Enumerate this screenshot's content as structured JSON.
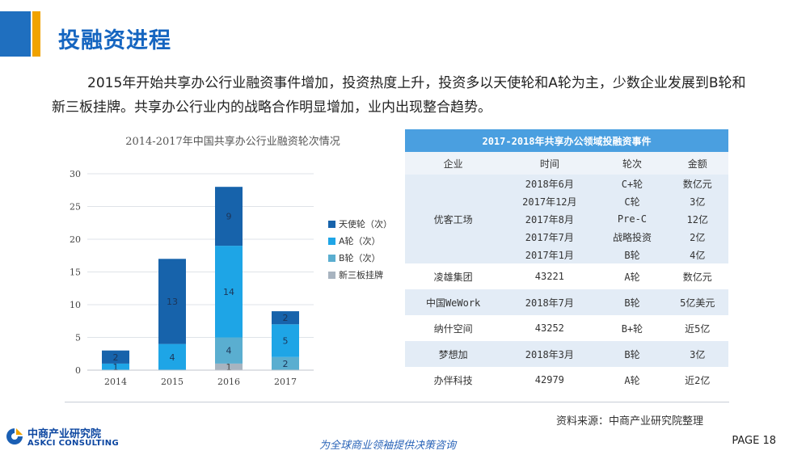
{
  "header": {
    "title": "投融资进程"
  },
  "intro": "2015年开始共享办公行业融资事件增加，投资热度上升，投资多以天使轮和A轮为主，少数企业发展到B轮和新三板挂牌。共享办公行业内的战略合作明显增加，业内出现整合趋势。",
  "chart_data": {
    "type": "bar",
    "stacked": true,
    "title": "2014-2017年中国共享办公行业融资轮次情况",
    "categories": [
      "2014",
      "2015",
      "2016",
      "2017"
    ],
    "ylim": [
      0,
      30
    ],
    "yticks": [
      0,
      5,
      10,
      15,
      20,
      25,
      30
    ],
    "grid": true,
    "legend_position": "right",
    "series": [
      {
        "name": "新三板挂牌",
        "color": "#a8b4c0",
        "values": [
          0,
          0,
          1,
          0
        ],
        "labels": [
          "",
          "",
          "1",
          ""
        ]
      },
      {
        "name": "B轮（次）",
        "color": "#5aaed0",
        "values": [
          0,
          0,
          4,
          2
        ],
        "labels": [
          "",
          "",
          "4",
          "2"
        ]
      },
      {
        "name": "A轮（次）",
        "color": "#1ea5e6",
        "values": [
          1,
          4,
          14,
          5
        ],
        "labels": [
          "1",
          "4",
          "14",
          "5"
        ]
      },
      {
        "name": "天使轮（次）",
        "color": "#1763ab",
        "values": [
          2,
          13,
          9,
          2
        ],
        "labels": [
          "2",
          "13",
          "9",
          "2"
        ]
      }
    ],
    "legend_order": [
      "天使轮（次）",
      "A轮（次）",
      "B轮（次）",
      "新三板挂牌"
    ]
  },
  "table": {
    "title": "2017-2018年共享办公领域投融资事件",
    "headers": [
      "企业",
      "时间",
      "轮次",
      "金额"
    ],
    "groups": [
      {
        "company": "优客工场",
        "rows": [
          [
            "2018年6月",
            "C+轮",
            "数亿元"
          ],
          [
            "2017年12月",
            "C轮",
            "3亿"
          ],
          [
            "2017年8月",
            "Pre-C",
            "12亿"
          ],
          [
            "2017年7月",
            "战略投资",
            "2亿"
          ],
          [
            "2017年1月",
            "B轮",
            "4亿"
          ]
        ]
      },
      {
        "company": "凌雄集团",
        "rows": [
          [
            "43221",
            "A轮",
            "数亿元"
          ]
        ]
      },
      {
        "company": "中国WeWork",
        "rows": [
          [
            "2018年7月",
            "B轮",
            "5亿美元"
          ]
        ]
      },
      {
        "company": "纳什空间",
        "rows": [
          [
            "43252",
            "B+轮",
            "近5亿"
          ]
        ]
      },
      {
        "company": "梦想加",
        "rows": [
          [
            "2018年3月",
            "B轮",
            "3亿"
          ]
        ]
      },
      {
        "company": "办伴科技",
        "rows": [
          [
            "42979",
            "A轮",
            "近2亿"
          ]
        ]
      }
    ]
  },
  "footer": {
    "source": "资料来源：中商产业研究院整理",
    "logo_cn": "中商产业研究院",
    "logo_en": "ASKCI CONSULTING",
    "slogan": "为全球商业领袖提供决策咨询",
    "page": "PAGE 18"
  }
}
